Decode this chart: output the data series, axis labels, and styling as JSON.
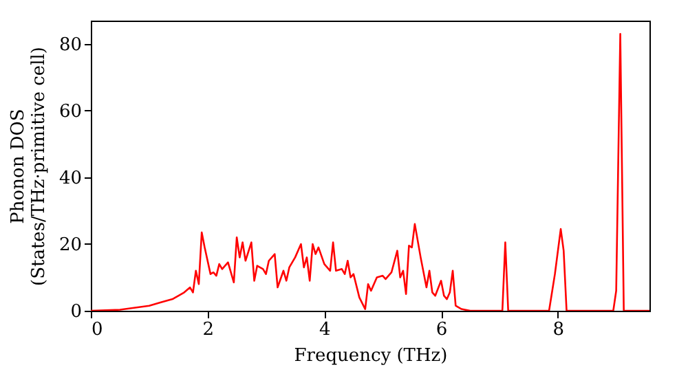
{
  "chart_data": {
    "type": "line",
    "xlabel": "Frequency (THz)",
    "ylabel": "Phonon DOS\n(States/THz·primitive cell)",
    "x": [
      0,
      0.5,
      1.0,
      1.2,
      1.4,
      1.6,
      1.7,
      1.75,
      1.8,
      1.85,
      1.9,
      1.95,
      2.05,
      2.1,
      2.15,
      2.2,
      2.25,
      2.35,
      2.45,
      2.5,
      2.55,
      2.6,
      2.65,
      2.75,
      2.8,
      2.85,
      2.95,
      3.0,
      3.05,
      3.15,
      3.2,
      3.3,
      3.35,
      3.4,
      3.5,
      3.6,
      3.65,
      3.7,
      3.75,
      3.8,
      3.85,
      3.9,
      4.0,
      4.1,
      4.15,
      4.2,
      4.3,
      4.35,
      4.4,
      4.45,
      4.5,
      4.6,
      4.7,
      4.75,
      4.8,
      4.9,
      5.0,
      5.05,
      5.15,
      5.25,
      5.3,
      5.35,
      5.4,
      5.45,
      5.5,
      5.55,
      5.65,
      5.75,
      5.8,
      5.85,
      5.9,
      6.0,
      6.05,
      6.1,
      6.15,
      6.2,
      6.25,
      6.35,
      6.5,
      7.05,
      7.1,
      7.15,
      7.85,
      7.95,
      8.05,
      8.1,
      8.15,
      8.95,
      9.0,
      9.07,
      9.13,
      9.57
    ],
    "series": [
      {
        "color": "#ff0000",
        "values": [
          0,
          0.3,
          1.5,
          2.5,
          3.5,
          5.5,
          7,
          5.5,
          12,
          8,
          23.5,
          19,
          11,
          11.5,
          10.5,
          14,
          12.5,
          14.5,
          8.5,
          22,
          16,
          20.5,
          15,
          20.5,
          9,
          13.5,
          12.5,
          11,
          15,
          17,
          7,
          12,
          9,
          13,
          16,
          20,
          13,
          16,
          9,
          20,
          17,
          19,
          14,
          12,
          20.5,
          12,
          12.5,
          11,
          15,
          10,
          11,
          4,
          0.5,
          8,
          6,
          10,
          10.5,
          9.5,
          11.5,
          18,
          10,
          12,
          5,
          19.5,
          19,
          26,
          16,
          7,
          12,
          5.5,
          4.5,
          9,
          4.5,
          3.5,
          5.5,
          12,
          1.5,
          0.5,
          0,
          0,
          20.5,
          0,
          0,
          11,
          24.5,
          18,
          0,
          0,
          6,
          83,
          0,
          0
        ]
      }
    ],
    "xlim": [
      0,
      9.57
    ],
    "xticks": [
      0,
      2,
      4,
      6,
      8
    ],
    "ylim": [
      0,
      87
    ],
    "yticks": [
      0,
      20,
      40,
      60,
      80
    ],
    "grid": false,
    "line_style": "solid"
  }
}
